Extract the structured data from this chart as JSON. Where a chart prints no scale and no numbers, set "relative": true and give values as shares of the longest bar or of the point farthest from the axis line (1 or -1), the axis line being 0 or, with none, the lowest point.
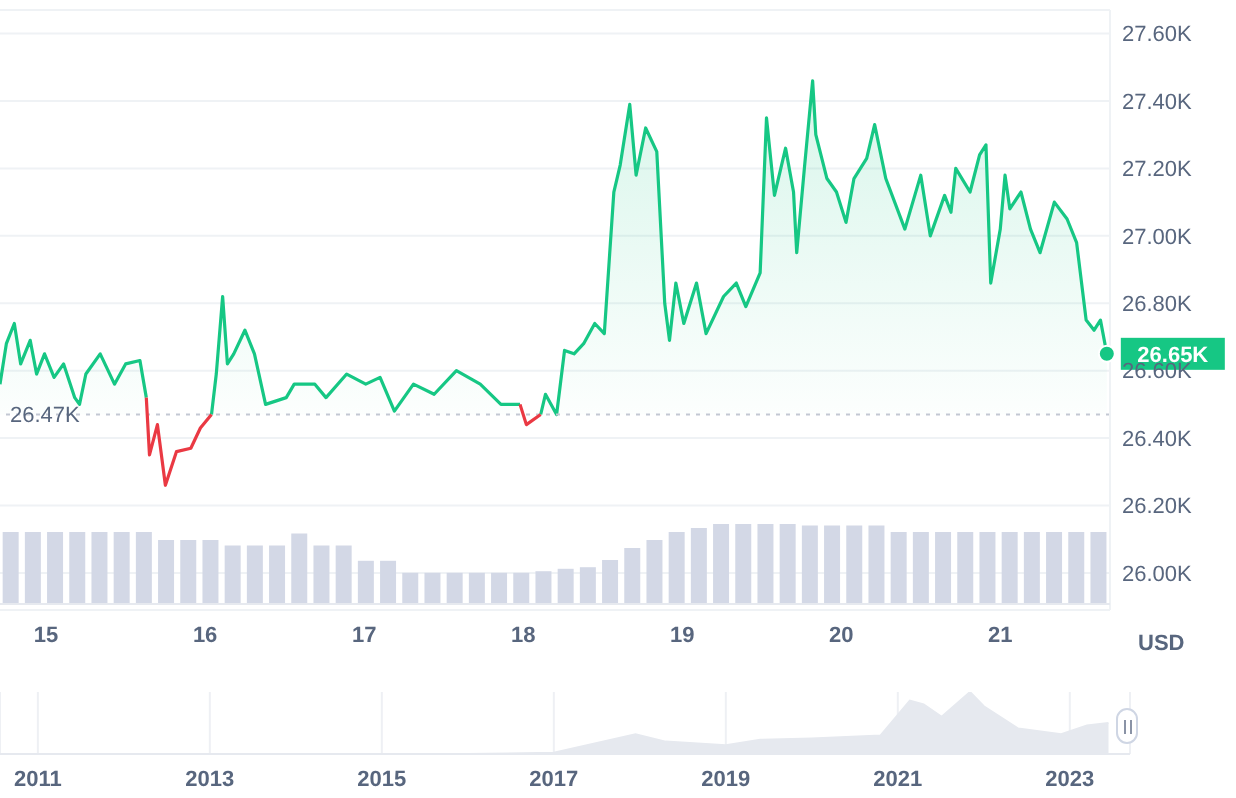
{
  "chart_data": [
    {
      "type": "area",
      "x": [
        14.71,
        14.75,
        14.8,
        14.84,
        14.9,
        14.94,
        14.99,
        15.05,
        15.11,
        15.18,
        15.21,
        15.25,
        15.34,
        15.43,
        15.5,
        15.59,
        15.63,
        15.65,
        15.7,
        15.75,
        15.82,
        15.91,
        15.97,
        16.04,
        16.07,
        16.11,
        16.14,
        16.18,
        16.25,
        16.31,
        16.38,
        16.51,
        16.56,
        16.69,
        16.76,
        16.89,
        17.01,
        17.1,
        17.19,
        17.31,
        17.44,
        17.58,
        17.73,
        17.86,
        17.98,
        18.02,
        18.11,
        18.14,
        18.21,
        18.26,
        18.32,
        18.38,
        18.45,
        18.51,
        18.57,
        18.61,
        18.67,
        18.71,
        18.77,
        18.84,
        18.89,
        18.92,
        18.96,
        19.01,
        19.09,
        19.15,
        19.26,
        19.34,
        19.4,
        19.49,
        19.53,
        19.58,
        19.65,
        19.7,
        19.72,
        19.77,
        19.82,
        19.84,
        19.91,
        19.97,
        20.03,
        20.08,
        20.16,
        20.21,
        20.28,
        20.4,
        20.5,
        20.56,
        20.65,
        20.69,
        20.72,
        20.81,
        20.87,
        20.91,
        20.94,
        21.0,
        21.03,
        21.06,
        21.13,
        21.19,
        21.25,
        21.34,
        21.42,
        21.48,
        21.54,
        21.59,
        21.63,
        21.67
      ],
      "series": [
        {
          "color": "#16c784",
          "values": [
            26560,
            26680,
            26740,
            26620,
            26690,
            26590,
            26650,
            26580,
            26620,
            26520,
            26500,
            26590,
            26650,
            26560,
            26620,
            26630,
            26520,
            null,
            null,
            null,
            null,
            null,
            null,
            26470,
            26590,
            26820,
            26620,
            26650,
            26720,
            26650,
            26500,
            26520,
            26560,
            26560,
            26520,
            26590,
            26560,
            26580,
            26480,
            26560,
            26530,
            26600,
            26560,
            26500,
            26500,
            null,
            26470,
            26530,
            26470,
            26660,
            26650,
            26680,
            26740,
            26710,
            27130,
            27210,
            27390,
            27180,
            27320,
            27250,
            26800,
            26690,
            26860,
            26740,
            26860,
            26710,
            26820,
            26860,
            26790,
            26890,
            27350,
            27120,
            27260,
            27130,
            26950,
            27210,
            27460,
            27300,
            27170,
            27130,
            27040,
            27170,
            27230,
            27330,
            27170,
            27020,
            27180,
            27000,
            27120,
            27070,
            27200,
            27130,
            27240,
            27270,
            26860,
            27020,
            27180,
            27080,
            27130,
            27020,
            26950,
            27100,
            27050,
            26980,
            26750,
            26720,
            26750,
            26650
          ]
        },
        {
          "type": "line",
          "color": "#ea3943",
          "values": [
            null,
            null,
            null,
            null,
            null,
            null,
            null,
            null,
            null,
            null,
            null,
            null,
            null,
            null,
            null,
            null,
            26520,
            26350,
            26440,
            26260,
            26360,
            26370,
            26430,
            26470,
            null,
            null,
            null,
            null,
            null,
            null,
            null,
            null,
            null,
            null,
            null,
            null,
            null,
            null,
            null,
            null,
            null,
            null,
            null,
            null,
            null,
            null,
            null,
            null,
            null,
            null,
            null,
            null,
            null,
            null,
            null,
            null,
            null,
            null,
            null,
            null,
            null,
            null,
            null,
            null,
            null,
            null,
            null,
            null,
            null,
            null,
            null,
            null,
            null,
            null,
            null,
            null,
            null,
            null,
            null,
            null,
            null,
            null,
            null,
            null,
            null,
            null,
            null,
            null,
            null,
            null,
            null,
            null,
            null,
            null,
            null,
            null,
            null,
            null,
            null,
            null,
            null,
            null,
            null,
            null,
            null,
            null,
            null,
            null
          ]
        },
        {
          "type": "line",
          "color": "#ea3943",
          "values": [
            null,
            null,
            null,
            null,
            null,
            null,
            null,
            null,
            null,
            null,
            null,
            null,
            null,
            null,
            null,
            null,
            null,
            null,
            null,
            null,
            null,
            null,
            null,
            null,
            null,
            null,
            null,
            null,
            null,
            null,
            null,
            null,
            null,
            null,
            null,
            null,
            null,
            null,
            null,
            null,
            null,
            null,
            null,
            null,
            26500,
            26440,
            26470,
            null,
            null,
            null,
            null,
            null,
            null,
            null,
            null,
            null,
            null,
            null,
            null,
            null,
            null,
            null,
            null,
            null,
            null,
            null,
            null,
            null,
            null,
            null,
            null,
            null,
            null,
            null,
            null,
            null,
            null,
            null,
            null,
            null,
            null,
            null,
            null,
            null,
            null,
            null,
            null,
            null,
            null,
            null,
            null,
            null,
            null,
            null,
            null,
            null,
            null,
            null,
            null,
            null,
            null,
            null,
            null,
            null,
            null,
            null,
            null,
            null
          ]
        }
      ],
      "xlim": [
        14.71,
        21.69
      ],
      "xticks": [
        15,
        16,
        17,
        18,
        19,
        20,
        21
      ],
      "ylim": [
        25890,
        27670
      ],
      "yticks": [
        {
          "value": 26000,
          "label": "26.00K"
        },
        {
          "value": 26200,
          "label": "26.20K"
        },
        {
          "value": 26400,
          "label": "26.40K"
        },
        {
          "value": 26600,
          "label": "26.60K"
        },
        {
          "value": 26800,
          "label": "26.80K"
        },
        {
          "value": 27000,
          "label": "27.00K"
        },
        {
          "value": 27200,
          "label": "27.20K"
        },
        {
          "value": 27400,
          "label": "27.40K"
        },
        {
          "value": 27600,
          "label": "27.60K"
        }
      ],
      "ylabel": "USD",
      "grid": "y",
      "ref_lines": [
        {
          "axis": "y",
          "value": 26470,
          "label": "26.47K",
          "line_style": "dotted",
          "color": "#c3c8d3"
        }
      ],
      "annotations": [
        {
          "text": "26.65K",
          "x": 21.67,
          "y": 26650
        }
      ]
    },
    {
      "type": "bar",
      "relative": true,
      "color": "#d3d8e6",
      "categories": [
        null,
        null,
        null,
        null,
        null,
        null,
        null,
        null,
        null,
        null,
        null,
        null,
        null,
        null,
        null,
        null,
        null,
        null,
        null,
        null,
        null,
        null,
        null,
        null,
        null,
        null,
        null,
        null,
        null,
        null,
        null,
        null,
        null,
        null,
        null,
        null,
        null,
        null,
        null,
        null,
        null,
        null,
        null,
        null,
        null,
        null,
        null,
        null,
        null,
        null
      ],
      "values": [
        0.9,
        0.9,
        0.9,
        0.9,
        0.9,
        0.9,
        0.9,
        0.8,
        0.8,
        0.8,
        0.73,
        0.73,
        0.73,
        0.88,
        0.73,
        0.73,
        0.54,
        0.54,
        0.39,
        0.39,
        0.39,
        0.39,
        0.39,
        0.39,
        0.41,
        0.44,
        0.46,
        0.55,
        0.7,
        0.8,
        0.9,
        0.95,
        1,
        1,
        1,
        1,
        0.98,
        0.98,
        0.98,
        0.98,
        0.9,
        0.9,
        0.9,
        0.9,
        0.9,
        0.9,
        0.9,
        0.9,
        0.9,
        0.9
      ]
    },
    {
      "type": "area",
      "relative": true,
      "color": "#e6e9ef",
      "x": [
        2010.56,
        2016,
        2017,
        2017.95,
        2018.3,
        2019,
        2019.4,
        2020,
        2020.8,
        2021.14,
        2021.3,
        2021.51,
        2021.84,
        2022,
        2022.4,
        2022.9,
        2023.2,
        2023.45
      ],
      "values": [
        0,
        0,
        0.02,
        0.32,
        0.2,
        0.14,
        0.23,
        0.25,
        0.3,
        0.86,
        0.8,
        0.6,
        1,
        0.77,
        0.41,
        0.32,
        0.46,
        0.5
      ],
      "xlim": [
        2010.56,
        2023.7
      ],
      "xticks": [
        2011,
        2013,
        2015,
        2017,
        2019,
        2021,
        2023
      ],
      "grid": "x"
    }
  ]
}
